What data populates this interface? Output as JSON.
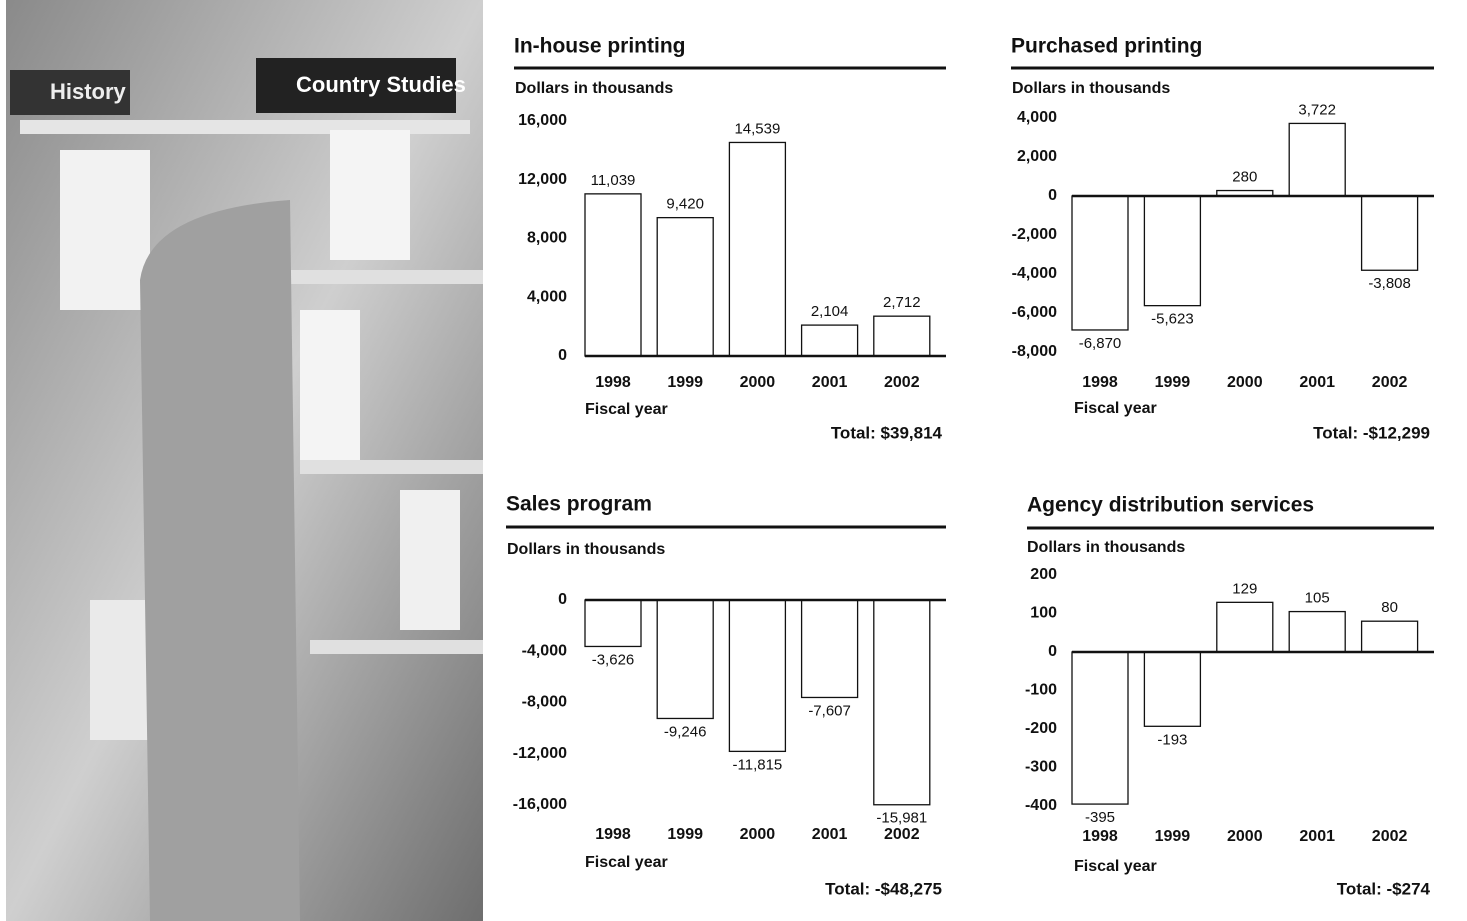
{
  "photo": {
    "signs": [
      "History",
      "Country Studies"
    ]
  },
  "chart_data": [
    {
      "type": "bar",
      "title": "In-house printing",
      "subtitle": "Dollars in thousands",
      "xlabel": "Fiscal year",
      "annotation": "Total: $39,814",
      "color": "#ffffff",
      "categories": [
        "1998",
        "1999",
        "2000",
        "2001",
        "2002"
      ],
      "values": [
        11039,
        9420,
        14539,
        2104,
        2712
      ],
      "value_labels": [
        "11,039",
        "9,420",
        "14,539",
        "2,104",
        "2,712"
      ],
      "ylim": [
        0,
        16000
      ],
      "yticks": [
        0,
        {
          "value": 4000,
          "label": "4,000"
        },
        {
          "value": 8000,
          "label": "8,000"
        },
        {
          "value": 12000,
          "label": "12,000"
        },
        {
          "value": 16000,
          "label": "16,000"
        }
      ]
    },
    {
      "type": "bar",
      "title": "Purchased printing",
      "subtitle": "Dollars in thousands",
      "xlabel": "Fiscal year",
      "annotation": "Total: -$12,299",
      "color": "#ffffff",
      "categories": [
        "1998",
        "1999",
        "2000",
        "2001",
        "2002"
      ],
      "values": [
        -6870,
        -5623,
        280,
        3722,
        -3808
      ],
      "value_labels": [
        "-6,870",
        "-5,623",
        "280",
        "3,722",
        "-3,808"
      ],
      "ylim": [
        -8000,
        4000
      ],
      "yticks": [
        {
          "value": -8000,
          "label": "-8,000"
        },
        {
          "value": -6000,
          "label": "-6,000"
        },
        {
          "value": -4000,
          "label": "-4,000"
        },
        {
          "value": -2000,
          "label": "-2,000"
        },
        0,
        {
          "value": 2000,
          "label": "2,000"
        },
        {
          "value": 4000,
          "label": "4,000"
        }
      ]
    },
    {
      "type": "bar",
      "title": "Sales program",
      "subtitle": "Dollars in thousands",
      "xlabel": "Fiscal year",
      "annotation": "Total: -$48,275",
      "color": "#ffffff",
      "categories": [
        "1998",
        "1999",
        "2000",
        "2001",
        "2002"
      ],
      "values": [
        -3626,
        -9246,
        -11815,
        -7607,
        -15981
      ],
      "value_labels": [
        "-3,626",
        "-9,246",
        "-11,815",
        "-7,607",
        "-15,981"
      ],
      "ylim": [
        -16000,
        0
      ],
      "yticks": [
        {
          "value": -16000,
          "label": "-16,000"
        },
        {
          "value": -12000,
          "label": "-12,000"
        },
        {
          "value": -8000,
          "label": "-8,000"
        },
        {
          "value": -4000,
          "label": "-4,000"
        },
        0
      ]
    },
    {
      "type": "bar",
      "title": "Agency distribution services",
      "subtitle": "Dollars in thousands",
      "xlabel": "Fiscal year",
      "annotation": "Total: -$274",
      "color": "#ffffff",
      "categories": [
        "1998",
        "1999",
        "2000",
        "2001",
        "2002"
      ],
      "values": [
        -395,
        -193,
        129,
        105,
        80
      ],
      "ylim": [
        -400,
        200
      ],
      "yticks": [
        -400,
        -300,
        -200,
        -100,
        0,
        100,
        200
      ]
    }
  ]
}
